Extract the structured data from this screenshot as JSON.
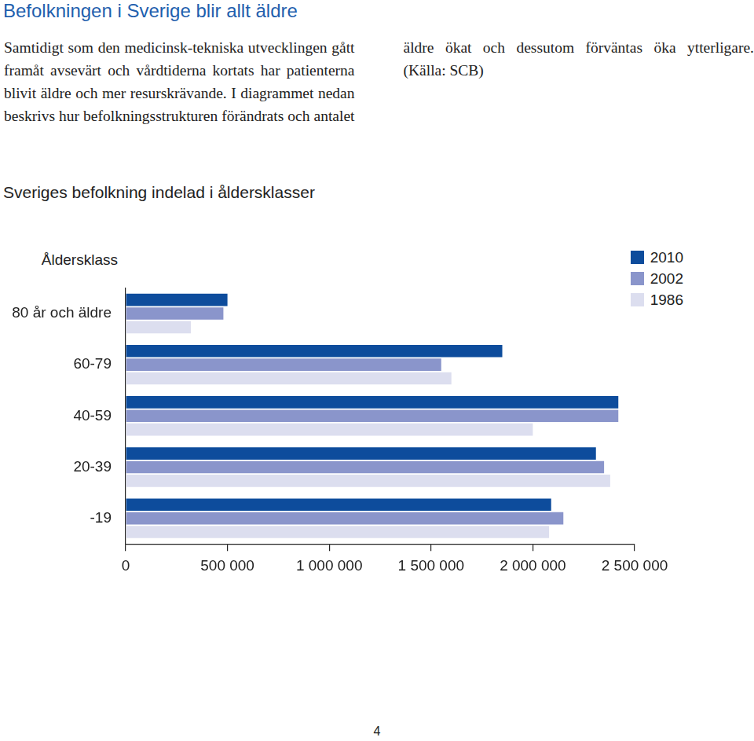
{
  "header": {
    "title": "Befolkningen i Sverige blir allt äldre"
  },
  "text": "Samtidigt som den medicinsk-tekniska utvecklingen gått framåt avsevärt och vårdtiderna kortats har patienterna blivit äldre och mer resurskrävande. I diagrammet nedan beskrivs hur befolkningsstrukturen förändrats och antalet äldre ökat och dessutom förväntas öka ytterligare. (Källa: SCB)",
  "chart_data": {
    "type": "bar",
    "orientation": "horizontal",
    "title": "Sveriges befolkning indelad i åldersklasser",
    "ylabel": "Åldersklass",
    "categories": [
      "80 år och äldre",
      "60-79",
      "40-59",
      "20-39",
      "-19"
    ],
    "series": [
      {
        "name": "2010",
        "color": "#0d4c9c",
        "values": [
          500000,
          1850000,
          2420000,
          2310000,
          2090000
        ]
      },
      {
        "name": "2002",
        "color": "#8a95cb",
        "values": [
          480000,
          1550000,
          2420000,
          2350000,
          2150000
        ]
      },
      {
        "name": "1986",
        "color": "#dcdeef",
        "values": [
          320000,
          1600000,
          2000000,
          2380000,
          2080000
        ]
      }
    ],
    "xlim": [
      0,
      2500000
    ],
    "xticks": [
      0,
      {
        "value": 500000,
        "label": "500 000"
      },
      {
        "value": 1000000,
        "label": "1 000 000"
      },
      {
        "value": 1500000,
        "label": "1 500 000"
      },
      {
        "value": 2000000,
        "label": "2 000 000"
      },
      {
        "value": 2500000,
        "label": "2 500 000"
      }
    ],
    "grid": false,
    "legend": "top-right"
  },
  "page_number": "4"
}
